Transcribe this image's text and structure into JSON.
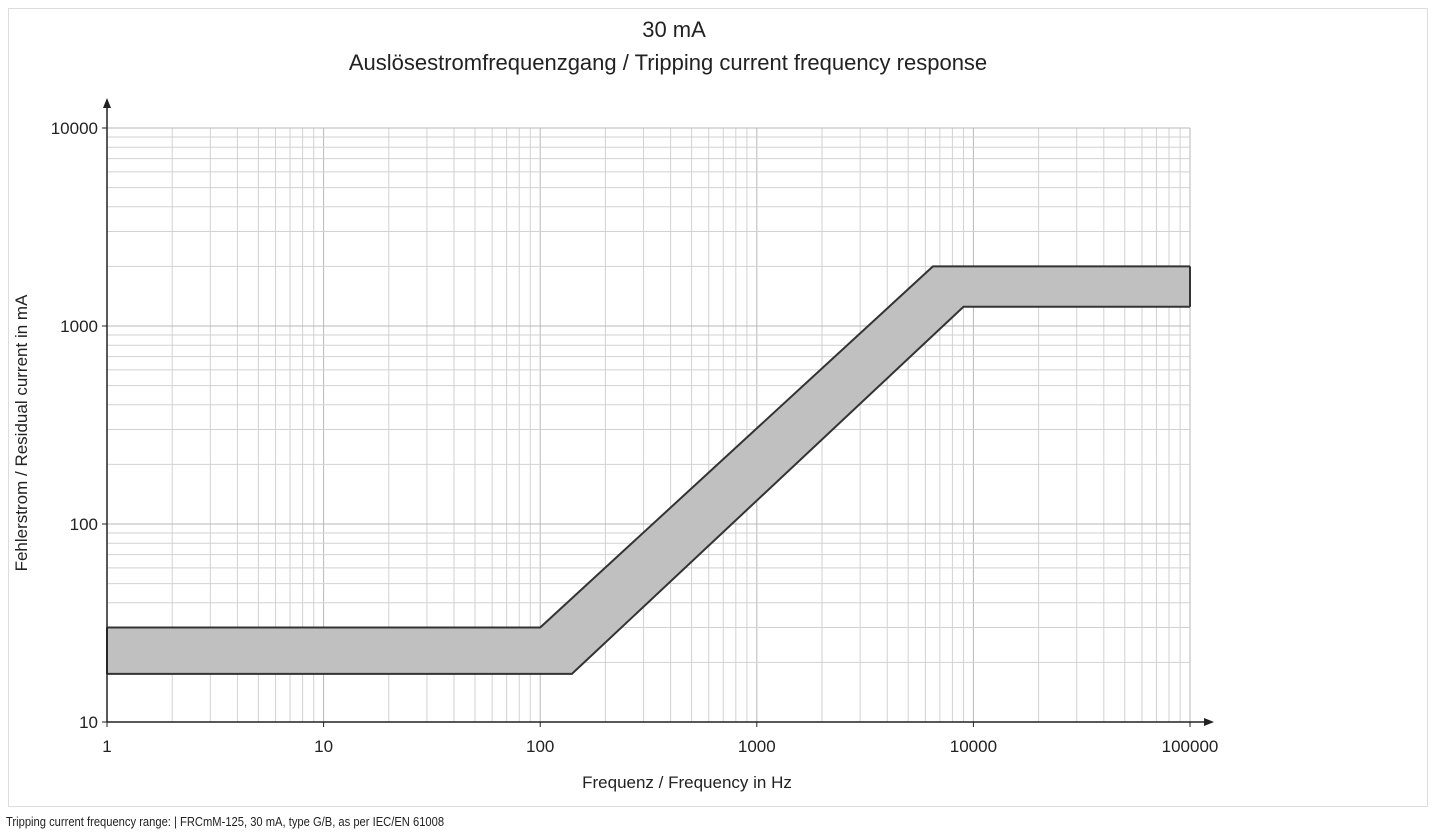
{
  "chart_data": {
    "type": "area",
    "title": "30 mA",
    "subtitle": "Auslösestromfrequenzgang / Tripping current frequency response",
    "xlabel": "Frequenz /  Frequency in Hz",
    "ylabel": "Fehlerstrom /  Residual current in mA",
    "x_scale": "log",
    "y_scale": "log",
    "xlim": [
      1,
      100000
    ],
    "ylim": [
      10,
      10000
    ],
    "x_ticks": [
      1,
      10,
      100,
      1000,
      10000,
      100000
    ],
    "x_tick_labels": [
      "1",
      "10",
      "100",
      "1000",
      "10000",
      "100000"
    ],
    "y_ticks": [
      10,
      100,
      1000,
      10000
    ],
    "y_tick_labels": [
      "10",
      "100",
      "1000",
      "10000"
    ],
    "grid": true,
    "band_color": "#c0c0c0",
    "line_color": "#333333",
    "series": [
      {
        "x": [
          1,
          100,
          6500,
          100000
        ],
        "values": [
          30,
          30,
          2000,
          2000
        ]
      },
      {
        "x": [
          1,
          140,
          9000,
          100000
        ],
        "values": [
          17.5,
          17.5,
          1250,
          1250
        ]
      }
    ]
  },
  "caption": "Tripping current frequency range: | FRCmM-125, 30 mA, type G/B, as per IEC/EN 61008"
}
